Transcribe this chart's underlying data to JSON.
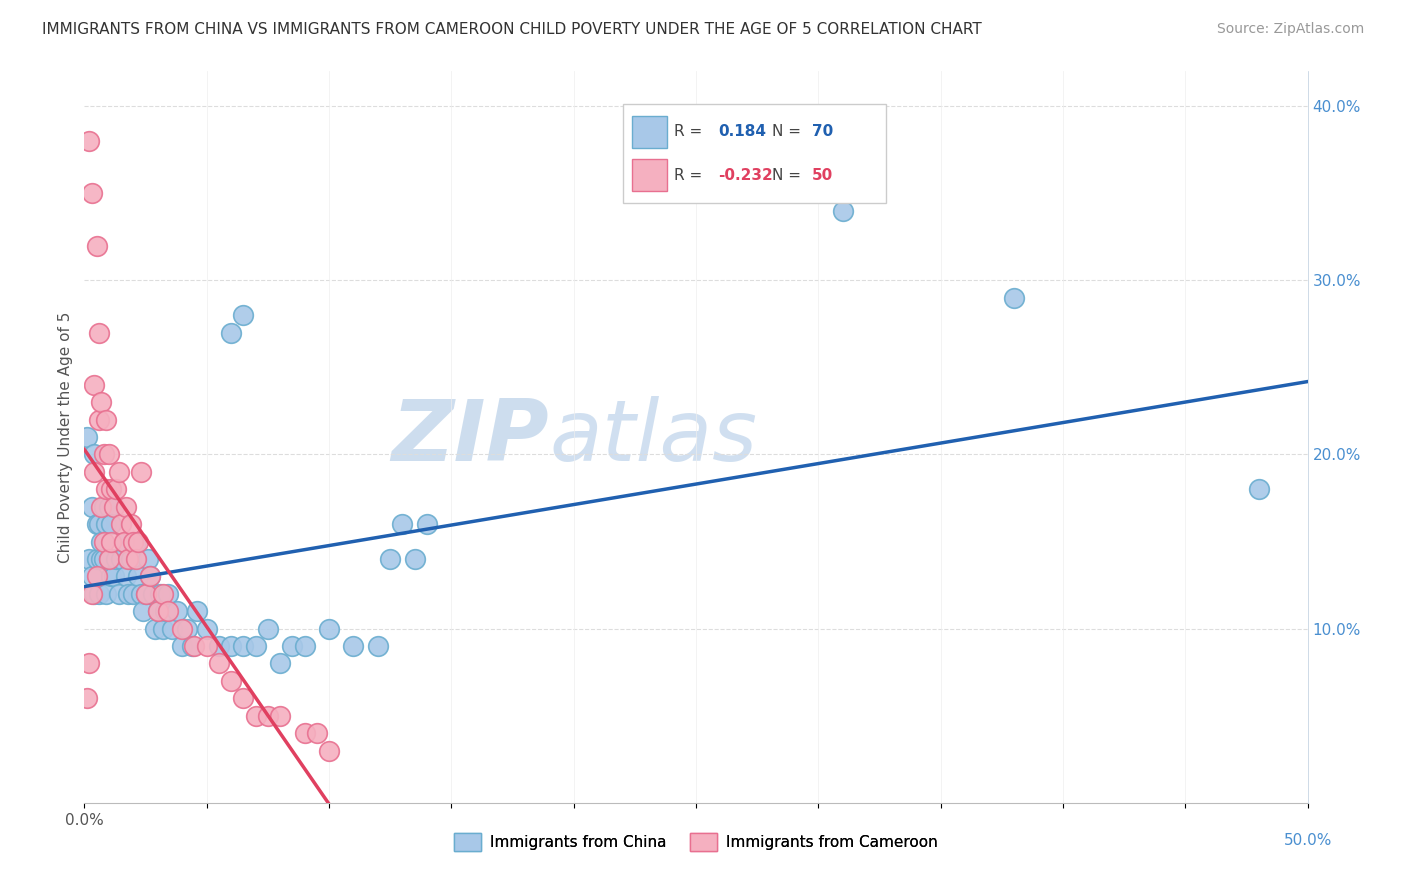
{
  "title": "IMMIGRANTS FROM CHINA VS IMMIGRANTS FROM CAMEROON CHILD POVERTY UNDER THE AGE OF 5 CORRELATION CHART",
  "source": "Source: ZipAtlas.com",
  "ylabel": "Child Poverty Under the Age of 5",
  "xlim": [
    0,
    0.5
  ],
  "ylim": [
    0,
    0.42
  ],
  "china_R": 0.184,
  "china_N": 70,
  "cameroon_R": -0.232,
  "cameroon_N": 50,
  "china_color": "#a8c8e8",
  "china_edge_color": "#6aadcf",
  "cameroon_color": "#f5b0c0",
  "cameroon_edge_color": "#e87090",
  "trend_china_color": "#2060b0",
  "trend_cameroon_color": "#e04060",
  "watermark_color": "#c8ddf0",
  "china_x": [
    0.001,
    0.002,
    0.003,
    0.003,
    0.004,
    0.004,
    0.005,
    0.005,
    0.006,
    0.006,
    0.007,
    0.007,
    0.008,
    0.008,
    0.009,
    0.009,
    0.01,
    0.01,
    0.011,
    0.011,
    0.012,
    0.013,
    0.014,
    0.015,
    0.016,
    0.017,
    0.018,
    0.019,
    0.02,
    0.021,
    0.022,
    0.023,
    0.024,
    0.025,
    0.026,
    0.027,
    0.028,
    0.029,
    0.03,
    0.031,
    0.032,
    0.033,
    0.034,
    0.036,
    0.038,
    0.04,
    0.042,
    0.044,
    0.046,
    0.05,
    0.055,
    0.06,
    0.065,
    0.07,
    0.075,
    0.08,
    0.085,
    0.09,
    0.1,
    0.11,
    0.12,
    0.125,
    0.13,
    0.135,
    0.14,
    0.06,
    0.065,
    0.48,
    0.38,
    0.31
  ],
  "china_y": [
    0.21,
    0.14,
    0.13,
    0.17,
    0.12,
    0.2,
    0.14,
    0.16,
    0.12,
    0.16,
    0.15,
    0.14,
    0.14,
    0.17,
    0.12,
    0.16,
    0.14,
    0.17,
    0.13,
    0.16,
    0.13,
    0.14,
    0.12,
    0.14,
    0.15,
    0.13,
    0.12,
    0.14,
    0.12,
    0.15,
    0.13,
    0.12,
    0.11,
    0.12,
    0.14,
    0.13,
    0.12,
    0.1,
    0.11,
    0.12,
    0.1,
    0.11,
    0.12,
    0.1,
    0.11,
    0.09,
    0.1,
    0.09,
    0.11,
    0.1,
    0.09,
    0.09,
    0.09,
    0.09,
    0.1,
    0.08,
    0.09,
    0.09,
    0.1,
    0.09,
    0.09,
    0.14,
    0.16,
    0.14,
    0.16,
    0.27,
    0.28,
    0.18,
    0.29,
    0.34
  ],
  "cameroon_x": [
    0.001,
    0.002,
    0.002,
    0.003,
    0.003,
    0.004,
    0.004,
    0.005,
    0.005,
    0.006,
    0.006,
    0.007,
    0.007,
    0.008,
    0.008,
    0.009,
    0.009,
    0.01,
    0.01,
    0.011,
    0.011,
    0.012,
    0.013,
    0.014,
    0.015,
    0.016,
    0.017,
    0.018,
    0.019,
    0.02,
    0.021,
    0.022,
    0.023,
    0.025,
    0.027,
    0.03,
    0.032,
    0.034,
    0.04,
    0.045,
    0.05,
    0.055,
    0.06,
    0.065,
    0.07,
    0.075,
    0.08,
    0.09,
    0.095,
    0.1
  ],
  "cameroon_y": [
    0.06,
    0.38,
    0.08,
    0.35,
    0.12,
    0.24,
    0.19,
    0.32,
    0.13,
    0.27,
    0.22,
    0.23,
    0.17,
    0.2,
    0.15,
    0.18,
    0.22,
    0.2,
    0.14,
    0.18,
    0.15,
    0.17,
    0.18,
    0.19,
    0.16,
    0.15,
    0.17,
    0.14,
    0.16,
    0.15,
    0.14,
    0.15,
    0.19,
    0.12,
    0.13,
    0.11,
    0.12,
    0.11,
    0.1,
    0.09,
    0.09,
    0.08,
    0.07,
    0.06,
    0.05,
    0.05,
    0.05,
    0.04,
    0.04,
    0.03
  ]
}
